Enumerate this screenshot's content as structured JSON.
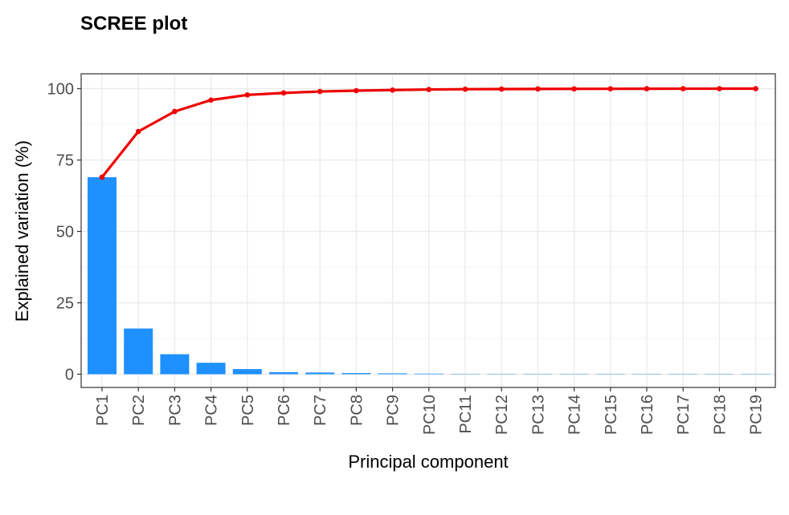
{
  "chart_data": {
    "type": "bar",
    "title": "SCREE plot",
    "xlabel": "Principal component",
    "ylabel": "Explained variation (%)",
    "categories": [
      "PC1",
      "PC2",
      "PC3",
      "PC4",
      "PC5",
      "PC6",
      "PC7",
      "PC8",
      "PC9",
      "PC10",
      "PC11",
      "PC12",
      "PC13",
      "PC14",
      "PC15",
      "PC16",
      "PC17",
      "PC18",
      "PC19"
    ],
    "ylim": [
      -4.5,
      105
    ],
    "yticks": [
      0,
      25,
      50,
      75,
      100
    ],
    "ytick_labels": [
      "0",
      "25",
      "50",
      "75",
      "100"
    ],
    "grid": true,
    "legend": "none",
    "series": [
      {
        "kind": "bar",
        "color": "#1E90FF",
        "values": [
          69.0,
          16.0,
          7.0,
          4.0,
          1.8,
          0.7,
          0.6,
          0.4,
          0.3,
          0.2,
          0.1,
          0.05,
          0.05,
          0.03,
          0.03,
          0.02,
          0.02,
          0.01,
          0.01
        ]
      },
      {
        "kind": "line",
        "color": "#EE0000",
        "values": [
          69.0,
          85.0,
          92.0,
          96.0,
          97.8,
          98.5,
          99.0,
          99.3,
          99.5,
          99.7,
          99.8,
          99.85,
          99.9,
          99.93,
          99.95,
          99.97,
          99.98,
          99.99,
          100.0
        ]
      }
    ]
  }
}
